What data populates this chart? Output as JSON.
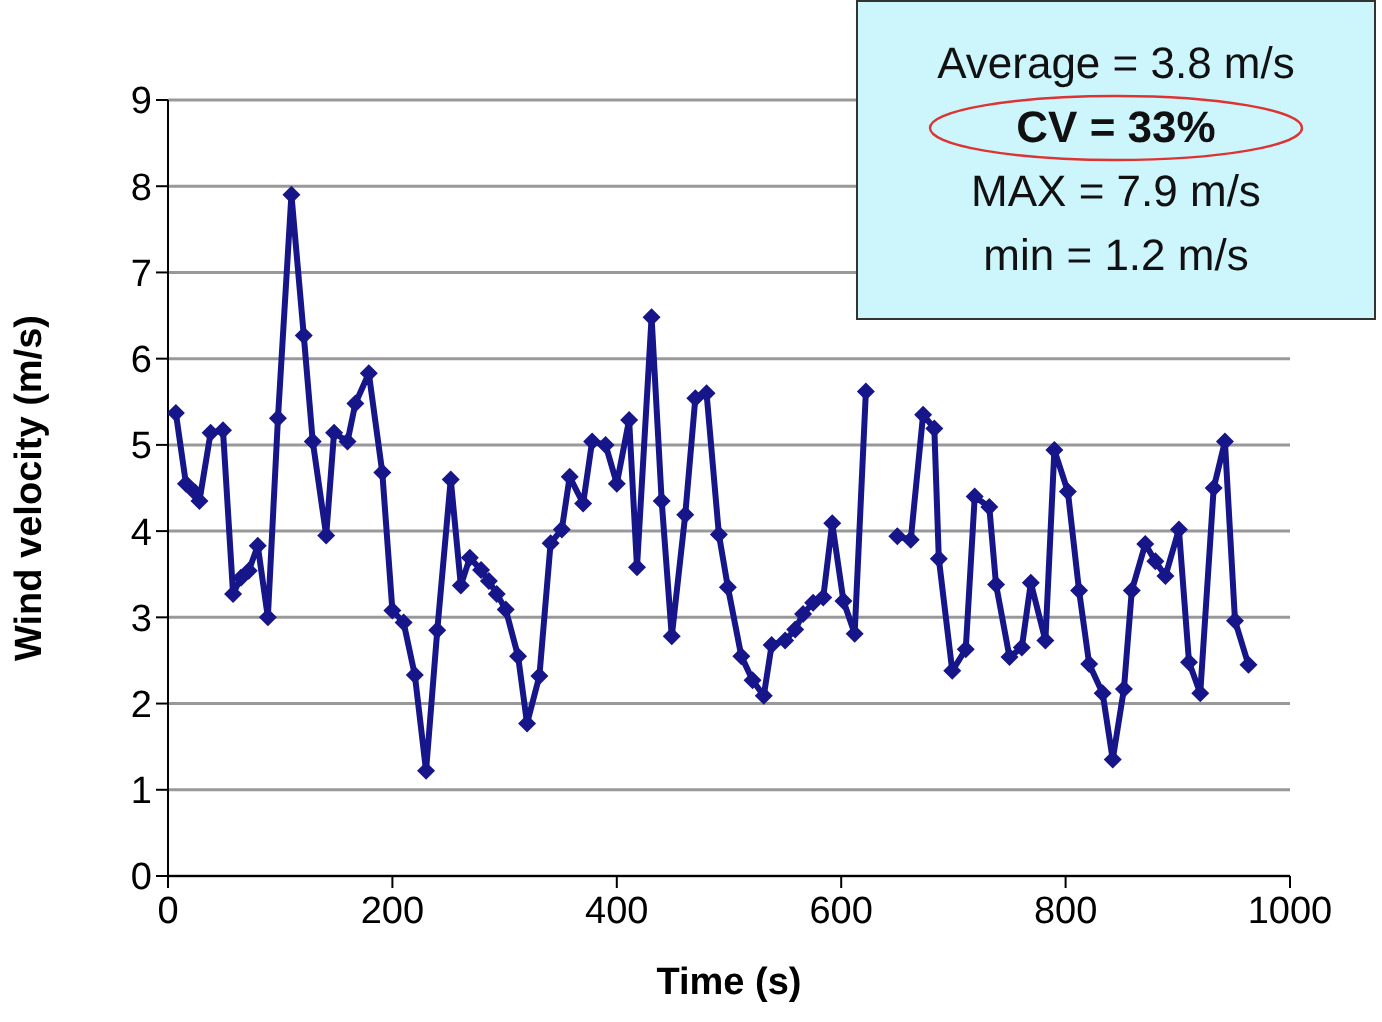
{
  "chart_data": {
    "type": "line",
    "xlabel": "Time (s)",
    "ylabel": "Wind velocity (m/s)",
    "x": [
      7,
      16,
      24,
      28,
      38,
      49,
      58,
      65,
      72,
      80,
      89,
      98,
      110,
      121,
      129,
      141,
      148,
      160,
      167,
      179,
      191,
      200,
      210,
      220,
      230,
      240,
      252,
      261,
      269,
      279,
      286,
      293,
      301,
      312,
      320,
      331,
      341,
      351,
      358,
      370,
      378,
      390,
      400,
      411,
      418,
      431,
      440,
      449,
      461,
      470,
      480,
      491,
      499,
      511,
      521,
      531,
      538,
      550,
      559,
      566,
      575,
      584,
      592,
      602,
      612,
      622,
      636,
      650,
      662,
      673,
      683,
      687,
      699,
      711,
      719,
      732,
      738,
      750,
      761,
      769,
      782,
      790,
      802,
      812,
      821,
      833,
      842,
      852,
      859,
      871,
      880,
      889,
      901,
      910,
      920,
      932,
      942,
      951,
      963
    ],
    "values": [
      5.37,
      4.55,
      4.45,
      4.35,
      5.14,
      5.17,
      3.27,
      3.46,
      3.54,
      3.83,
      3.0,
      5.31,
      7.9,
      6.27,
      5.04,
      3.95,
      5.14,
      5.04,
      5.48,
      5.83,
      4.68,
      3.08,
      2.94,
      2.33,
      1.22,
      2.85,
      4.6,
      3.37,
      3.69,
      3.55,
      3.42,
      3.27,
      3.09,
      2.55,
      1.77,
      2.32,
      3.86,
      4.02,
      4.63,
      4.32,
      5.04,
      5.0,
      4.55,
      5.29,
      3.58,
      6.48,
      4.35,
      2.78,
      4.19,
      5.54,
      5.6,
      3.96,
      3.35,
      2.55,
      2.27,
      2.09,
      2.68,
      2.73,
      2.86,
      3.04,
      3.17,
      3.23,
      4.09,
      3.19,
      2.81,
      5.62,
      null,
      3.94,
      3.9,
      5.35,
      5.19,
      3.68,
      2.38,
      2.63,
      4.4,
      4.28,
      3.38,
      2.54,
      2.65,
      3.4,
      2.73,
      4.94,
      4.46,
      3.31,
      2.46,
      2.12,
      1.35,
      2.17,
      3.31,
      3.85,
      3.65,
      3.48,
      4.02,
      2.48,
      2.12,
      4.5,
      5.04,
      2.96,
      2.45
    ],
    "color": "#16168a",
    "marker": "diamond",
    "line_style": "solid",
    "xlim": [
      0,
      1000
    ],
    "xticks": [
      0,
      200,
      400,
      600,
      800,
      1000
    ],
    "ylim": [
      0,
      9
    ],
    "yticks": [
      0,
      1,
      2,
      3,
      4,
      5,
      6,
      7,
      8,
      9
    ],
    "grid": "y",
    "annotations": [
      "Average = 3.8 m/s",
      "CV = 33%",
      "MAX = 7.9 m/s",
      "min = 1.2 m/s"
    ]
  }
}
